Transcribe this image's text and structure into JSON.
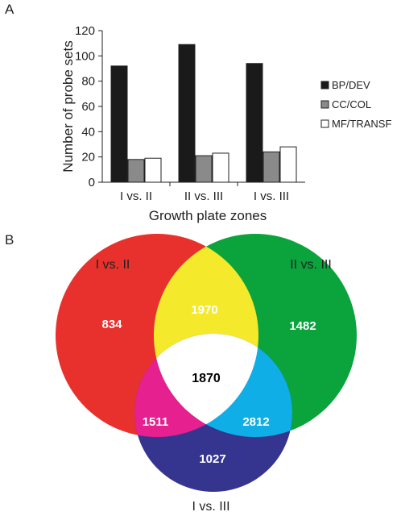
{
  "panel_a_label": "A",
  "panel_b_label": "B",
  "chart_data": [
    {
      "type": "bar",
      "categories": [
        "I vs. II",
        "II vs. III",
        "I vs. III"
      ],
      "series": [
        {
          "name": "BP/DEV",
          "values": [
            92,
            109,
            94
          ],
          "color": "#1a1a1a"
        },
        {
          "name": "CC/COL",
          "values": [
            18,
            21,
            24
          ],
          "color": "#8a8a8a"
        },
        {
          "name": "MF/TRANSF",
          "values": [
            19,
            23,
            28
          ],
          "color": "#ffffff"
        }
      ],
      "xlabel": "Growth plate zones",
      "ylabel": "Number of probe sets",
      "ylim": [
        0,
        120
      ],
      "yticks": [
        0,
        20,
        40,
        60,
        80,
        100,
        120
      ],
      "legend_position": "right",
      "grid": false
    },
    {
      "type": "venn",
      "sets": [
        {
          "name": "I vs. II",
          "color": "#e8312c"
        },
        {
          "name": "II vs. III",
          "color": "#0aa33c"
        },
        {
          "name": "I vs. III",
          "color": "#35358f"
        }
      ],
      "regions": [
        {
          "sets": [
            "I vs. II"
          ],
          "value": 834
        },
        {
          "sets": [
            "II vs. III"
          ],
          "value": 1482
        },
        {
          "sets": [
            "I vs. III"
          ],
          "value": 1027
        },
        {
          "sets": [
            "I vs. II",
            "II vs. III"
          ],
          "value": 1970,
          "color": "#f5e92b"
        },
        {
          "sets": [
            "I vs. II",
            "I vs. III"
          ],
          "value": 1511,
          "color": "#e6208e"
        },
        {
          "sets": [
            "II vs. III",
            "I vs. III"
          ],
          "value": 2812,
          "color": "#10aee6"
        },
        {
          "sets": [
            "I vs. II",
            "II vs. III",
            "I vs. III"
          ],
          "value": 1870,
          "color": "#ffffff"
        }
      ]
    }
  ]
}
